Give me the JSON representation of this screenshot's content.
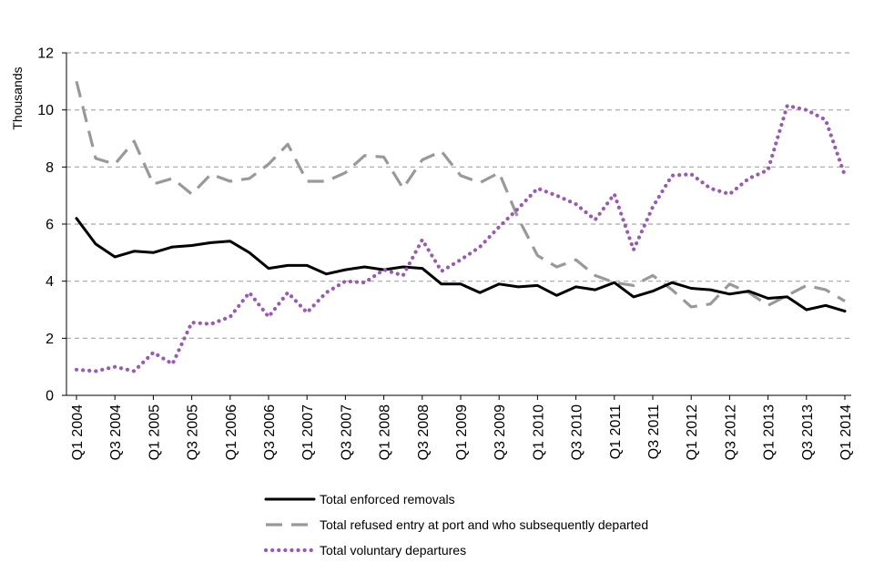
{
  "chart_data": {
    "type": "line",
    "title": "",
    "xlabel": "",
    "ylabel": "Thousands",
    "ylim": [
      0,
      12
    ],
    "yticks": [
      0,
      2,
      4,
      6,
      8,
      10,
      12
    ],
    "grid": true,
    "legend_position": "bottom",
    "categories": [
      "Q1 2004",
      "Q2 2004",
      "Q3 2004",
      "Q4 2004",
      "Q1 2005",
      "Q2 2005",
      "Q3 2005",
      "Q4 2005",
      "Q1 2006",
      "Q2 2006",
      "Q3 2006",
      "Q4 2006",
      "Q1 2007",
      "Q2 2007",
      "Q3 2007",
      "Q4 2007",
      "Q1 2008",
      "Q2 2008",
      "Q3 2008",
      "Q4 2008",
      "Q1 2009",
      "Q2 2009",
      "Q3 2009",
      "Q4 2009",
      "Q1 2010",
      "Q2 2010",
      "Q3 2010",
      "Q4 2010",
      "Q1 2011",
      "Q2 2011",
      "Q3 2011",
      "Q4 2011",
      "Q1 2012",
      "Q2 2012",
      "Q3 2012",
      "Q4 2012",
      "Q1 2013",
      "Q2 2013",
      "Q3 2013",
      "Q4 2013",
      "Q1 2014"
    ],
    "x_tick_labels": [
      "Q1 2004",
      "Q3 2004",
      "Q1 2005",
      "Q3 2005",
      "Q1 2006",
      "Q3 2006",
      "Q1 2007",
      "Q3 2007",
      "Q1 2008",
      "Q3 2008",
      "Q1 2009",
      "Q3 2009",
      "Q1 2010",
      "Q3 2010",
      "Q1 2011",
      "Q3 2011",
      "Q1 2012",
      "Q3 2012",
      "Q1 2013",
      "Q3 2013",
      "Q1 2014"
    ],
    "series": [
      {
        "name": "Total enforced removals",
        "style": "solid",
        "color": "#000000",
        "values": [
          6.2,
          5.3,
          4.85,
          5.05,
          5.0,
          5.2,
          5.25,
          5.35,
          5.4,
          5.0,
          4.45,
          4.55,
          4.55,
          4.25,
          4.4,
          4.5,
          4.4,
          4.5,
          4.45,
          3.9,
          3.9,
          3.6,
          3.9,
          3.8,
          3.85,
          3.5,
          3.8,
          3.7,
          3.95,
          3.45,
          3.65,
          3.95,
          3.75,
          3.7,
          3.55,
          3.65,
          3.4,
          3.45,
          3.0,
          3.15,
          2.95
        ]
      },
      {
        "name": "Total refused entry at port and who subsequently departed",
        "style": "dashed",
        "color": "#999999",
        "values": [
          11.0,
          8.3,
          8.1,
          8.9,
          7.4,
          7.6,
          7.05,
          7.75,
          7.5,
          7.6,
          8.1,
          8.8,
          7.5,
          7.5,
          7.8,
          8.4,
          8.35,
          7.25,
          8.25,
          8.55,
          7.7,
          7.45,
          7.8,
          6.2,
          4.9,
          4.5,
          4.75,
          4.2,
          3.95,
          3.85,
          4.2,
          3.7,
          3.1,
          3.2,
          3.9,
          3.6,
          3.15,
          3.5,
          3.85,
          3.7,
          3.3
        ]
      },
      {
        "name": "Total voluntary departures",
        "style": "dotted",
        "color": "#9b59b6",
        "values": [
          0.9,
          0.85,
          1.0,
          0.85,
          1.5,
          1.1,
          2.55,
          2.5,
          2.75,
          3.6,
          2.75,
          3.6,
          2.9,
          3.6,
          4.0,
          3.95,
          4.4,
          4.2,
          5.45,
          4.35,
          4.75,
          5.2,
          5.9,
          6.55,
          7.25,
          7.0,
          6.7,
          6.15,
          7.05,
          5.1,
          6.6,
          7.7,
          7.75,
          7.25,
          7.05,
          7.6,
          7.9,
          10.15,
          10.0,
          9.65,
          7.7
        ]
      }
    ]
  }
}
